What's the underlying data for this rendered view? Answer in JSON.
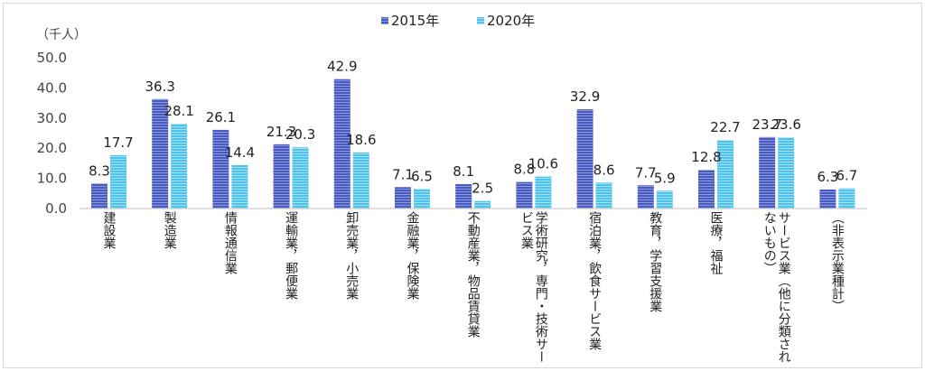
{
  "chart_data": {
    "type": "bar",
    "unit_label": "（千人）",
    "ylim": [
      0,
      50
    ],
    "yticks": [
      "0.0",
      "10.0",
      "20.0",
      "30.0",
      "40.0",
      "50.0"
    ],
    "categories": [
      "建設業",
      "製造業",
      "情報通信業",
      "運輸業，郵便業",
      "卸売業，小売業",
      "金融業，保険業",
      "不動産業，物品賃貸業",
      "学術研究，専門・技術サービス業",
      "宿泊業，飲食サービス業",
      "教育，学習支援業",
      "医療，福祉",
      "サービス業（他に分類されないもの）",
      "（非表示業種計）"
    ],
    "category_lines": [
      [
        "建設業"
      ],
      [
        "製造業"
      ],
      [
        "情報通信業"
      ],
      [
        "運輸業，郵便業"
      ],
      [
        "卸売業，小売業"
      ],
      [
        "金融業，保険業"
      ],
      [
        "不動産業，物品賃貸業"
      ],
      [
        "学術研究，専門・技術サー",
        "ビス業"
      ],
      [
        "宿泊業，飲食サービス業"
      ],
      [
        "教育，学習支援業"
      ],
      [
        "医療，福祉"
      ],
      [
        "サービス業（他に分類され",
        "ないもの）"
      ],
      [
        "（非表示業種計）"
      ]
    ],
    "series": [
      {
        "name": "2015年",
        "color": "#4a5bbf",
        "values": [
          8.3,
          36.3,
          26.1,
          21.3,
          42.9,
          7.1,
          8.1,
          8.8,
          32.9,
          7.7,
          12.8,
          23.7,
          6.3
        ],
        "labels": [
          "8.3",
          "36.3",
          "26.1",
          "21.3",
          "42.9",
          "7.1",
          "8.1",
          "8.8",
          "32.9",
          "7.7",
          "12.8",
          "23.7",
          "6.3"
        ]
      },
      {
        "name": "2020年",
        "color": "#4fc3ec",
        "values": [
          17.7,
          28.1,
          14.4,
          20.3,
          18.6,
          6.5,
          2.5,
          10.6,
          8.6,
          5.9,
          22.7,
          23.6,
          6.7
        ],
        "labels": [
          "17.7",
          "28.1",
          "14.4",
          "20.3",
          "18.6",
          "6.5",
          "2.5",
          "10.6",
          "8.6",
          "5.9",
          "22.7",
          "23.6",
          "6.7"
        ]
      }
    ],
    "legend_position": "top-center",
    "grid": false
  }
}
